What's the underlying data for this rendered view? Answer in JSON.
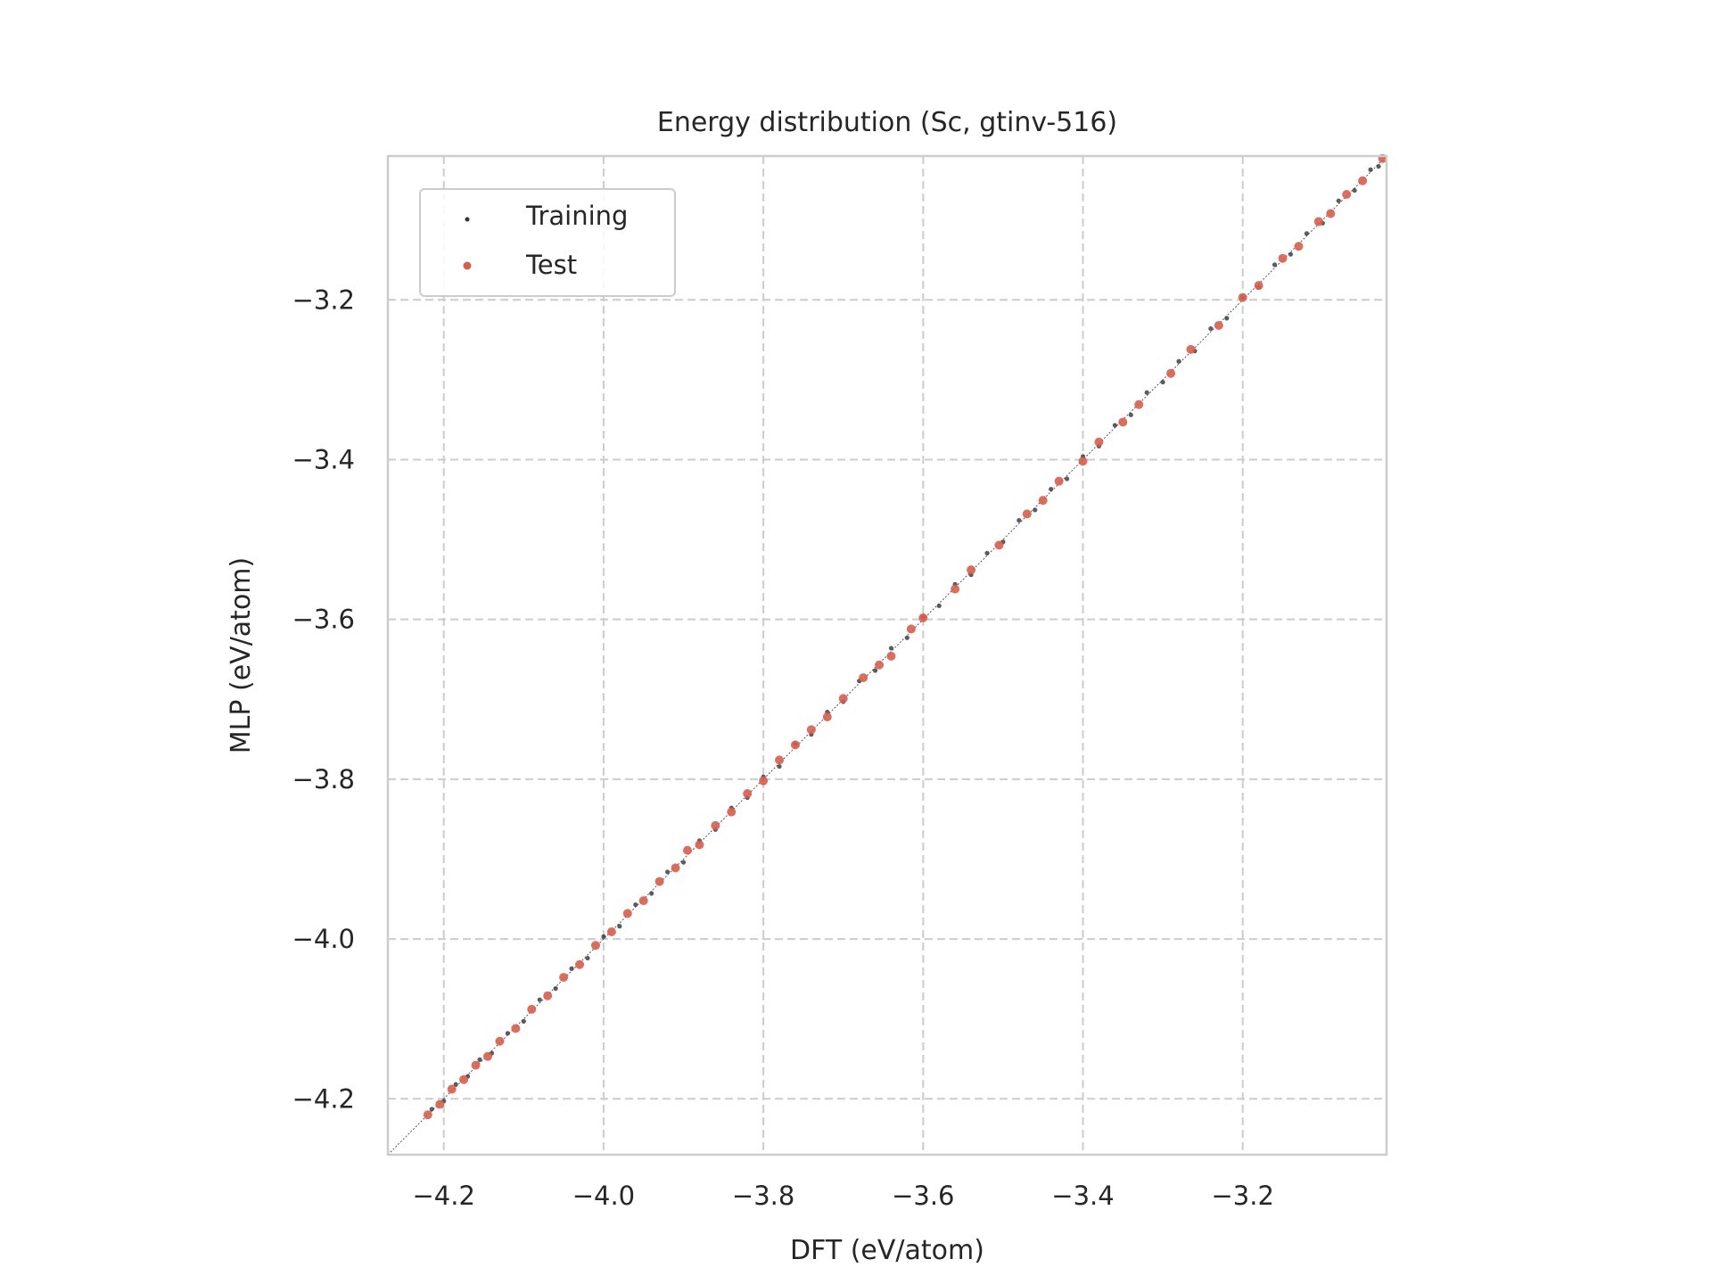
{
  "chart_data": {
    "type": "scatter",
    "title": "Energy distribution (Sc, gtinv-516)",
    "xlabel": "DFT (eV/atom)",
    "ylabel": "MLP (eV/atom)",
    "xlim": [
      -4.27,
      -3.02
    ],
    "ylim": [
      -4.27,
      -3.02
    ],
    "grid": true,
    "grid_style": "dashed",
    "legend_position": "top-left",
    "reference_line": {
      "from": [
        -4.27,
        -4.27
      ],
      "to": [
        -3.02,
        -3.02
      ],
      "style": "dotted",
      "color": "#555555"
    },
    "x_ticks": [
      {
        "value": -4.2,
        "label": "−4.2"
      },
      {
        "value": -4.0,
        "label": "−4.0"
      },
      {
        "value": -3.8,
        "label": "−3.8"
      },
      {
        "value": -3.6,
        "label": "−3.6"
      },
      {
        "value": -3.4,
        "label": "−3.4"
      },
      {
        "value": -3.2,
        "label": "−3.2"
      }
    ],
    "y_ticks": [
      {
        "value": -4.2,
        "label": "−4.2"
      },
      {
        "value": -4.0,
        "label": "−4.0"
      },
      {
        "value": -3.8,
        "label": "−3.8"
      },
      {
        "value": -3.6,
        "label": "−3.6"
      },
      {
        "value": -3.4,
        "label": "−3.4"
      },
      {
        "value": -3.2,
        "label": "−3.2"
      }
    ],
    "series": [
      {
        "name": "Training",
        "color": "#333333",
        "points": [
          [
            -4.215,
            -4.213
          ],
          [
            -4.2,
            -4.203
          ],
          [
            -4.185,
            -4.182
          ],
          [
            -4.17,
            -4.172
          ],
          [
            -4.155,
            -4.151
          ],
          [
            -4.14,
            -4.143
          ],
          [
            -4.12,
            -4.118
          ],
          [
            -4.1,
            -4.103
          ],
          [
            -4.08,
            -4.076
          ],
          [
            -4.06,
            -4.062
          ],
          [
            -4.04,
            -4.037
          ],
          [
            -4.02,
            -4.024
          ],
          [
            -4.0,
            -3.997
          ],
          [
            -3.98,
            -3.984
          ],
          [
            -3.96,
            -3.957
          ],
          [
            -3.94,
            -3.943
          ],
          [
            -3.92,
            -3.916
          ],
          [
            -3.9,
            -3.904
          ],
          [
            -3.88,
            -3.877
          ],
          [
            -3.86,
            -3.863
          ],
          [
            -3.84,
            -3.836
          ],
          [
            -3.82,
            -3.823
          ],
          [
            -3.8,
            -3.797
          ],
          [
            -3.78,
            -3.784
          ],
          [
            -3.76,
            -3.756
          ],
          [
            -3.74,
            -3.744
          ],
          [
            -3.72,
            -3.716
          ],
          [
            -3.7,
            -3.703
          ],
          [
            -3.68,
            -3.677
          ],
          [
            -3.66,
            -3.664
          ],
          [
            -3.64,
            -3.636
          ],
          [
            -3.62,
            -3.623
          ],
          [
            -3.6,
            -3.597
          ],
          [
            -3.58,
            -3.583
          ],
          [
            -3.56,
            -3.556
          ],
          [
            -3.54,
            -3.544
          ],
          [
            -3.52,
            -3.517
          ],
          [
            -3.5,
            -3.503
          ],
          [
            -3.48,
            -3.476
          ],
          [
            -3.46,
            -3.463
          ],
          [
            -3.44,
            -3.437
          ],
          [
            -3.42,
            -3.424
          ],
          [
            -3.4,
            -3.396
          ],
          [
            -3.38,
            -3.383
          ],
          [
            -3.36,
            -3.357
          ],
          [
            -3.34,
            -3.344
          ],
          [
            -3.32,
            -3.316
          ],
          [
            -3.3,
            -3.303
          ],
          [
            -3.28,
            -3.277
          ],
          [
            -3.26,
            -3.264
          ],
          [
            -3.24,
            -3.236
          ],
          [
            -3.22,
            -3.223
          ],
          [
            -3.2,
            -3.197
          ],
          [
            -3.18,
            -3.184
          ],
          [
            -3.16,
            -3.156
          ],
          [
            -3.14,
            -3.143
          ],
          [
            -3.12,
            -3.117
          ],
          [
            -3.1,
            -3.104
          ],
          [
            -3.08,
            -3.076
          ],
          [
            -3.06,
            -3.063
          ],
          [
            -3.04,
            -3.037
          ],
          [
            -3.03,
            -3.033
          ]
        ]
      },
      {
        "name": "Test",
        "color": "#d65f4e",
        "points": [
          [
            -4.22,
            -4.22
          ],
          [
            -4.205,
            -4.207
          ],
          [
            -4.19,
            -4.188
          ],
          [
            -4.175,
            -4.176
          ],
          [
            -4.16,
            -4.158
          ],
          [
            -4.145,
            -4.147
          ],
          [
            -4.13,
            -4.128
          ],
          [
            -4.11,
            -4.112
          ],
          [
            -4.09,
            -4.088
          ],
          [
            -4.07,
            -4.071
          ],
          [
            -4.05,
            -4.048
          ],
          [
            -4.03,
            -4.032
          ],
          [
            -4.01,
            -4.008
          ],
          [
            -3.99,
            -3.991
          ],
          [
            -3.97,
            -3.968
          ],
          [
            -3.95,
            -3.952
          ],
          [
            -3.93,
            -3.928
          ],
          [
            -3.91,
            -3.911
          ],
          [
            -3.895,
            -3.889
          ],
          [
            -3.88,
            -3.882
          ],
          [
            -3.86,
            -3.858
          ],
          [
            -3.84,
            -3.841
          ],
          [
            -3.82,
            -3.818
          ],
          [
            -3.8,
            -3.802
          ],
          [
            -3.78,
            -3.776
          ],
          [
            -3.76,
            -3.757
          ],
          [
            -3.74,
            -3.738
          ],
          [
            -3.72,
            -3.722
          ],
          [
            -3.7,
            -3.699
          ],
          [
            -3.675,
            -3.673
          ],
          [
            -3.655,
            -3.657
          ],
          [
            -3.64,
            -3.646
          ],
          [
            -3.615,
            -3.612
          ],
          [
            -3.6,
            -3.598
          ],
          [
            -3.56,
            -3.562
          ],
          [
            -3.54,
            -3.538
          ],
          [
            -3.505,
            -3.507
          ],
          [
            -3.47,
            -3.468
          ],
          [
            -3.45,
            -3.451
          ],
          [
            -3.43,
            -3.427
          ],
          [
            -3.4,
            -3.402
          ],
          [
            -3.38,
            -3.378
          ],
          [
            -3.35,
            -3.353
          ],
          [
            -3.33,
            -3.331
          ],
          [
            -3.29,
            -3.292
          ],
          [
            -3.265,
            -3.262
          ],
          [
            -3.23,
            -3.232
          ],
          [
            -3.2,
            -3.197
          ],
          [
            -3.18,
            -3.182
          ],
          [
            -3.15,
            -3.148
          ],
          [
            -3.13,
            -3.133
          ],
          [
            -3.105,
            -3.102
          ],
          [
            -3.09,
            -3.092
          ],
          [
            -3.07,
            -3.068
          ],
          [
            -3.05,
            -3.051
          ],
          [
            -3.025,
            -3.023
          ]
        ]
      }
    ]
  }
}
